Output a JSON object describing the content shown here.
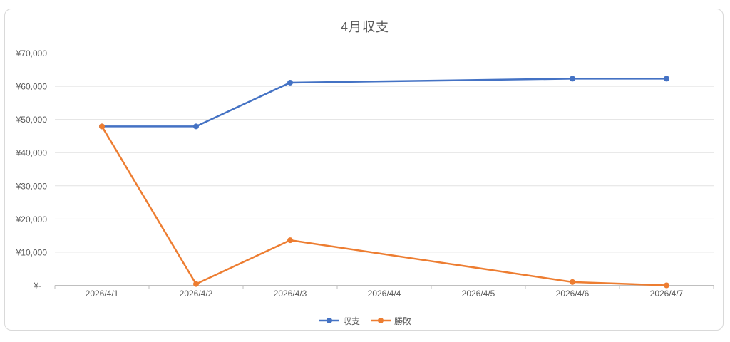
{
  "chart": {
    "frame_border_color": "#d9d9d9",
    "title_color": "#595959",
    "axis_text_color": "#595959",
    "grid_color": "#e2e2e2",
    "axis_line_color": "#bfbfbf"
  },
  "chart_data": {
    "type": "line",
    "title": "4月収支",
    "categories": [
      "2026/4/1",
      "2026/4/2",
      "2026/4/3",
      "2026/4/4",
      "2026/4/5",
      "2026/4/6",
      "2026/4/7"
    ],
    "series": [
      {
        "name": "収支",
        "color": "#4472C4",
        "values": [
          47900,
          47900,
          61100,
          null,
          null,
          62300,
          62300
        ]
      },
      {
        "name": "勝敗",
        "color": "#ED7D31",
        "values": [
          47900,
          400,
          13600,
          null,
          null,
          1000,
          0
        ]
      }
    ],
    "y_ticks": [
      "¥70,000",
      "¥60,000",
      "¥50,000",
      "¥40,000",
      "¥30,000",
      "¥20,000",
      "¥10,000",
      "¥-"
    ],
    "ylim": [
      0,
      70000
    ],
    "y_step": 10000,
    "grid": true,
    "legend_position": "bottom",
    "marker": "circle",
    "missing_points": "connected-across-gaps"
  }
}
